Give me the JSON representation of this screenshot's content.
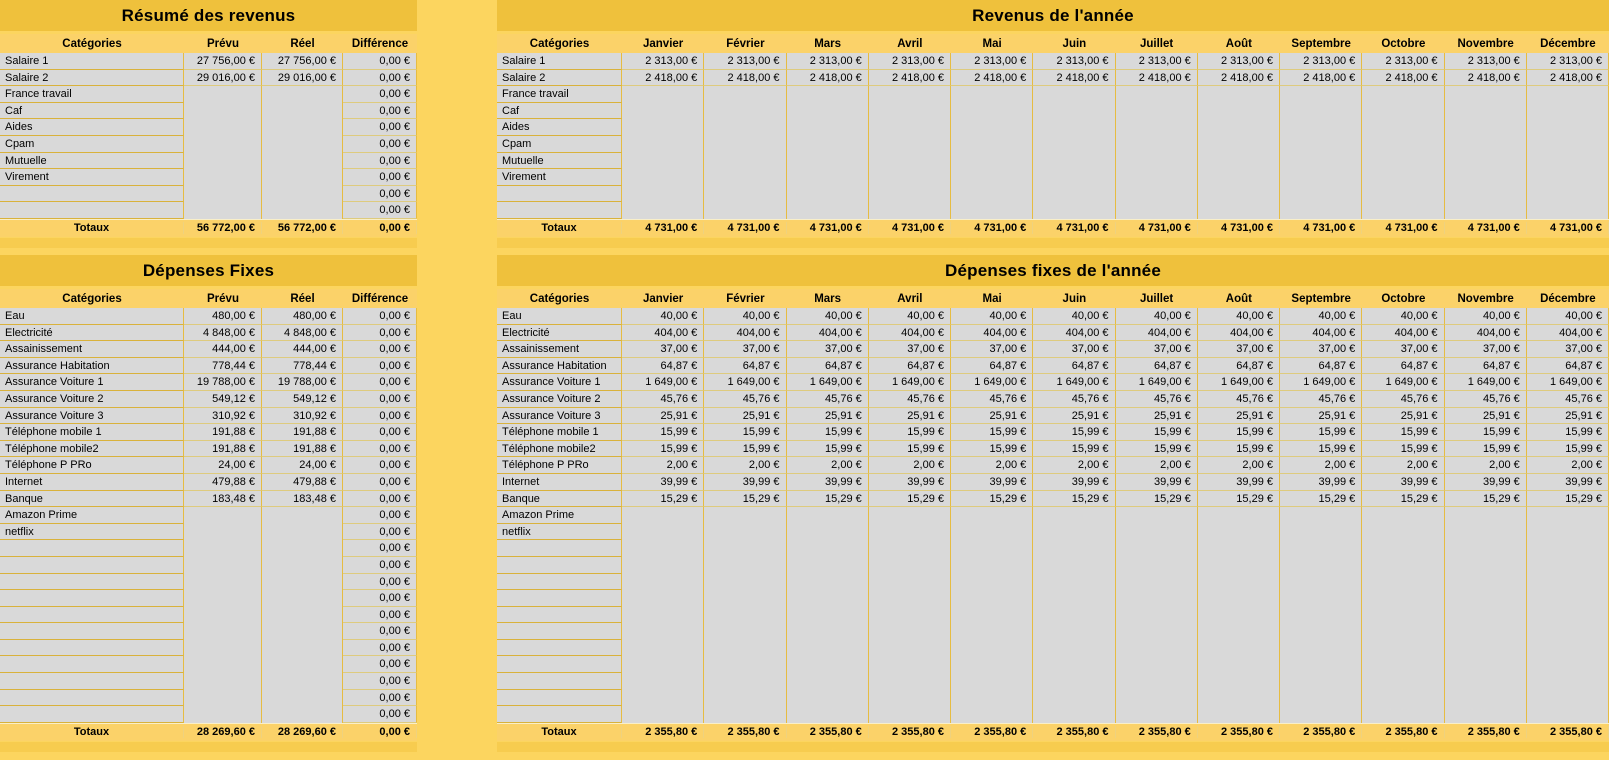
{
  "theme": {
    "background": "#FCD55F",
    "title_band": "#EFC13C",
    "header_band": "#FBD269",
    "cell_gray": "#D9D9D9",
    "grid_gold": "#D9B23C"
  },
  "col_headers": {
    "categories": "Catégories",
    "prevu": "Prévu",
    "reel": "Réel",
    "difference": "Différence"
  },
  "months": [
    "Janvier",
    "Février",
    "Mars",
    "Avril",
    "Mai",
    "Juin",
    "Juillet",
    "Août",
    "Septembre",
    "Octobre",
    "Novembre",
    "Décembre"
  ],
  "totals_label": "Totaux",
  "revenue_summary": {
    "title": "Résumé des revenus",
    "rows": [
      {
        "label": "Salaire 1",
        "prevu": "27 756,00 €",
        "reel": "27 756,00 €",
        "diff": "0,00 €"
      },
      {
        "label": "Salaire 2",
        "prevu": "29 016,00 €",
        "reel": "29 016,00 €",
        "diff": "0,00 €"
      },
      {
        "label": "France travail",
        "prevu": "",
        "reel": "",
        "diff": "0,00 €"
      },
      {
        "label": "Caf",
        "prevu": "",
        "reel": "",
        "diff": "0,00 €"
      },
      {
        "label": "Aides",
        "prevu": "",
        "reel": "",
        "diff": "0,00 €"
      },
      {
        "label": "Cpam",
        "prevu": "",
        "reel": "",
        "diff": "0,00 €"
      },
      {
        "label": "Mutuelle",
        "prevu": "",
        "reel": "",
        "diff": "0,00 €"
      },
      {
        "label": "Virement",
        "prevu": "",
        "reel": "",
        "diff": "0,00 €"
      },
      {
        "label": "",
        "prevu": "",
        "reel": "",
        "diff": "0,00 €"
      },
      {
        "label": "",
        "prevu": "",
        "reel": "",
        "diff": "0,00 €"
      }
    ],
    "totals": {
      "prevu": "56 772,00 €",
      "reel": "56 772,00 €",
      "diff": "0,00 €"
    }
  },
  "revenue_year": {
    "title": "Revenus de l'année",
    "rows": [
      {
        "label": "Salaire 1",
        "monthly": "2 313,00 €"
      },
      {
        "label": "Salaire 2",
        "monthly": "2 418,00 €"
      },
      {
        "label": "France travail",
        "monthly": ""
      },
      {
        "label": "Caf",
        "monthly": ""
      },
      {
        "label": "Aides",
        "monthly": ""
      },
      {
        "label": "Cpam",
        "monthly": ""
      },
      {
        "label": "Mutuelle",
        "monthly": ""
      },
      {
        "label": "Virement",
        "monthly": ""
      },
      {
        "label": "",
        "monthly": ""
      },
      {
        "label": "",
        "monthly": ""
      }
    ],
    "totals": {
      "monthly": "4 731,00 €"
    }
  },
  "expenses_summary": {
    "title": "Dépenses Fixes",
    "rows": [
      {
        "label": "Eau",
        "prevu": "480,00 €",
        "reel": "480,00 €",
        "diff": "0,00 €"
      },
      {
        "label": "Electricité",
        "prevu": "4 848,00 €",
        "reel": "4 848,00 €",
        "diff": "0,00 €"
      },
      {
        "label": "Assainissement",
        "prevu": "444,00 €",
        "reel": "444,00 €",
        "diff": "0,00 €"
      },
      {
        "label": "Assurance Habitation",
        "prevu": "778,44 €",
        "reel": "778,44 €",
        "diff": "0,00 €"
      },
      {
        "label": "Assurance Voiture 1",
        "prevu": "19 788,00 €",
        "reel": "19 788,00 €",
        "diff": "0,00 €"
      },
      {
        "label": "Assurance Voiture 2",
        "prevu": "549,12 €",
        "reel": "549,12 €",
        "diff": "0,00 €"
      },
      {
        "label": "Assurance Voiture 3",
        "prevu": "310,92 €",
        "reel": "310,92 €",
        "diff": "0,00 €"
      },
      {
        "label": "Téléphone mobile 1",
        "prevu": "191,88 €",
        "reel": "191,88 €",
        "diff": "0,00 €"
      },
      {
        "label": "Téléphone mobile2",
        "prevu": "191,88 €",
        "reel": "191,88 €",
        "diff": "0,00 €"
      },
      {
        "label": "Téléphone P PRo",
        "prevu": "24,00 €",
        "reel": "24,00 €",
        "diff": "0,00 €"
      },
      {
        "label": "Internet",
        "prevu": "479,88 €",
        "reel": "479,88 €",
        "diff": "0,00 €"
      },
      {
        "label": "Banque",
        "prevu": "183,48 €",
        "reel": "183,48 €",
        "diff": "0,00 €"
      },
      {
        "label": "Amazon Prime",
        "prevu": "",
        "reel": "",
        "diff": "0,00 €"
      },
      {
        "label": "netflix",
        "prevu": "",
        "reel": "",
        "diff": "0,00 €"
      },
      {
        "label": "",
        "prevu": "",
        "reel": "",
        "diff": "0,00 €"
      },
      {
        "label": "",
        "prevu": "",
        "reel": "",
        "diff": "0,00 €"
      },
      {
        "label": "",
        "prevu": "",
        "reel": "",
        "diff": "0,00 €"
      },
      {
        "label": "",
        "prevu": "",
        "reel": "",
        "diff": "0,00 €"
      },
      {
        "label": "",
        "prevu": "",
        "reel": "",
        "diff": "0,00 €"
      },
      {
        "label": "",
        "prevu": "",
        "reel": "",
        "diff": "0,00 €"
      },
      {
        "label": "",
        "prevu": "",
        "reel": "",
        "diff": "0,00 €"
      },
      {
        "label": "",
        "prevu": "",
        "reel": "",
        "diff": "0,00 €"
      },
      {
        "label": "",
        "prevu": "",
        "reel": "",
        "diff": "0,00 €"
      },
      {
        "label": "",
        "prevu": "",
        "reel": "",
        "diff": "0,00 €"
      },
      {
        "label": "",
        "prevu": "",
        "reel": "",
        "diff": "0,00 €"
      }
    ],
    "totals": {
      "prevu": "28 269,60 €",
      "reel": "28 269,60 €",
      "diff": "0,00 €"
    }
  },
  "expenses_year": {
    "title": "Dépenses fixes de l'année",
    "rows": [
      {
        "label": "Eau",
        "monthly": "40,00 €"
      },
      {
        "label": "Electricité",
        "monthly": "404,00 €"
      },
      {
        "label": "Assainissement",
        "monthly": "37,00 €"
      },
      {
        "label": "Assurance Habitation",
        "monthly": "64,87 €"
      },
      {
        "label": "Assurance Voiture 1",
        "monthly": "1 649,00 €"
      },
      {
        "label": "Assurance Voiture 2",
        "monthly": "45,76 €"
      },
      {
        "label": "Assurance Voiture 3",
        "monthly": "25,91 €"
      },
      {
        "label": "Téléphone mobile 1",
        "monthly": "15,99 €"
      },
      {
        "label": "Téléphone mobile2",
        "monthly": "15,99 €"
      },
      {
        "label": "Téléphone P PRo",
        "monthly": "2,00 €"
      },
      {
        "label": "Internet",
        "monthly": "39,99 €"
      },
      {
        "label": "Banque",
        "monthly": "15,29 €"
      },
      {
        "label": "Amazon Prime",
        "monthly": ""
      },
      {
        "label": "netflix",
        "monthly": ""
      },
      {
        "label": "",
        "monthly": ""
      },
      {
        "label": "",
        "monthly": ""
      },
      {
        "label": "",
        "monthly": ""
      },
      {
        "label": "",
        "monthly": ""
      },
      {
        "label": "",
        "monthly": ""
      },
      {
        "label": "",
        "monthly": ""
      },
      {
        "label": "",
        "monthly": ""
      },
      {
        "label": "",
        "monthly": ""
      },
      {
        "label": "",
        "monthly": ""
      },
      {
        "label": "",
        "monthly": ""
      },
      {
        "label": "",
        "monthly": ""
      }
    ],
    "totals": {
      "monthly": "2 355,80 €"
    }
  }
}
